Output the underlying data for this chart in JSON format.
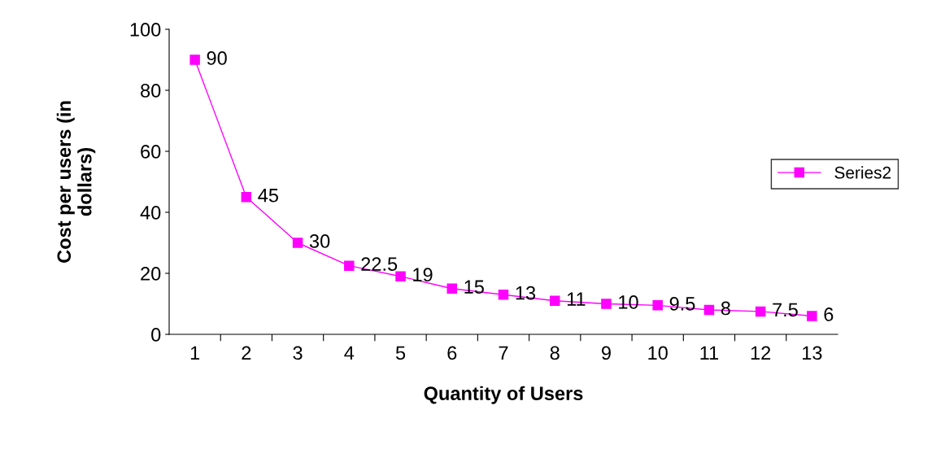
{
  "chart_data": {
    "type": "line",
    "xlabel": "Quantity of Users",
    "ylabel": "Cost per users (in\ndollars)",
    "categories": [
      "1",
      "2",
      "3",
      "4",
      "5",
      "6",
      "7",
      "8",
      "9",
      "10",
      "11",
      "12",
      "13"
    ],
    "series": [
      {
        "name": "Series2",
        "color": "#ff00ff",
        "values": [
          90,
          45,
          30,
          22.5,
          19,
          15,
          13,
          11,
          10,
          9.5,
          8,
          7.5,
          6
        ]
      }
    ],
    "ylim": [
      0,
      100
    ],
    "yticks": [
      0,
      20,
      40,
      60,
      80,
      100
    ],
    "grid": false,
    "legend": "right",
    "marker": "square",
    "line_style": "solid",
    "data_labels": true
  }
}
